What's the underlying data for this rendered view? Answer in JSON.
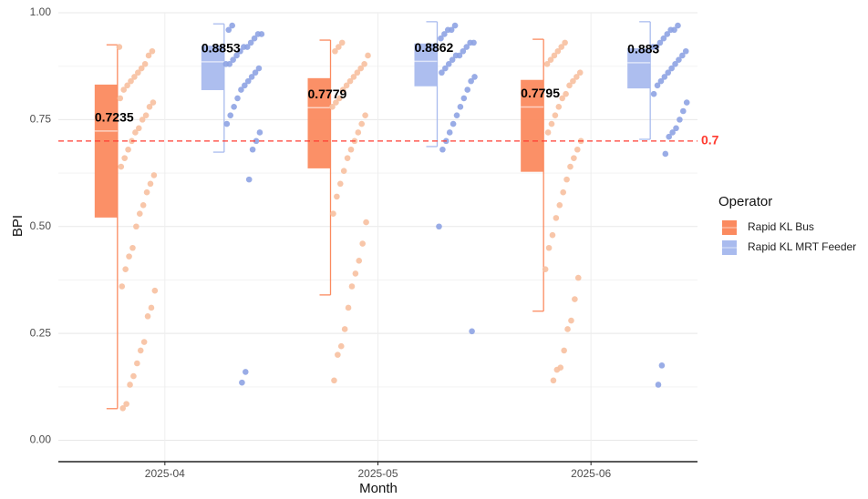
{
  "chart_data": {
    "type": "box",
    "x_label": "Month",
    "y_label": "BPI",
    "categories": [
      "2025-04",
      "2025-05",
      "2025-06"
    ],
    "ylim": [
      -0.05,
      1.0
    ],
    "yticks": [
      {
        "value": 0,
        "label": "0.00"
      },
      {
        "value": 0.25,
        "label": "0.25"
      },
      {
        "value": 0.5,
        "label": "0.50"
      },
      {
        "value": 0.75,
        "label": "0.75"
      },
      {
        "value": 1,
        "label": "1.00"
      }
    ],
    "grid": true,
    "legend_title": "Operator",
    "legend_position": "right",
    "hline": {
      "value": 0.7,
      "color": "#ff3b30"
    },
    "series": [
      {
        "name": "Rapid KL Bus",
        "color": "#fb8a5f",
        "point_color": "#f7c0a0",
        "boxes": [
          {
            "low": 0.074,
            "q1": 0.521,
            "median": 0.7235,
            "q3": 0.832,
            "high": 0.925
          },
          {
            "low": 0.34,
            "q1": 0.636,
            "median": 0.7779,
            "q3": 0.847,
            "high": 0.936
          },
          {
            "low": 0.302,
            "q1": 0.628,
            "median": 0.7795,
            "q3": 0.843,
            "high": 0.938
          }
        ],
        "points": [
          [
            0.92,
            0.91,
            0.9,
            0.88,
            0.87,
            0.86,
            0.85,
            0.84,
            0.83,
            0.82,
            0.8,
            0.79,
            0.78,
            0.76,
            0.75,
            0.73,
            0.72,
            0.7,
            0.68,
            0.66,
            0.64,
            0.62,
            0.6,
            0.58,
            0.55,
            0.53,
            0.5,
            0.45,
            0.43,
            0.4,
            0.36,
            0.35,
            0.31,
            0.29,
            0.23,
            0.21,
            0.18,
            0.15,
            0.13,
            0.085,
            0.075
          ],
          [
            0.93,
            0.92,
            0.91,
            0.9,
            0.88,
            0.87,
            0.86,
            0.85,
            0.84,
            0.83,
            0.82,
            0.8,
            0.79,
            0.78,
            0.76,
            0.74,
            0.72,
            0.7,
            0.68,
            0.66,
            0.63,
            0.6,
            0.57,
            0.53,
            0.51,
            0.46,
            0.42,
            0.39,
            0.36,
            0.31,
            0.26,
            0.22,
            0.2,
            0.14
          ],
          [
            0.93,
            0.92,
            0.91,
            0.9,
            0.89,
            0.88,
            0.86,
            0.85,
            0.84,
            0.83,
            0.81,
            0.8,
            0.78,
            0.76,
            0.74,
            0.72,
            0.7,
            0.68,
            0.66,
            0.64,
            0.61,
            0.58,
            0.55,
            0.52,
            0.48,
            0.45,
            0.4,
            0.38,
            0.33,
            0.28,
            0.26,
            0.21,
            0.17,
            0.165,
            0.14
          ]
        ]
      },
      {
        "name": "Rapid KL MRT Feeder",
        "color": "#a9bbee",
        "point_color": "#8ea3e3",
        "boxes": [
          {
            "low": 0.674,
            "q1": 0.819,
            "median": 0.8853,
            "q3": 0.923,
            "high": 0.974
          },
          {
            "low": 0.687,
            "q1": 0.828,
            "median": 0.8862,
            "q3": 0.928,
            "high": 0.979
          },
          {
            "low": 0.704,
            "q1": 0.823,
            "median": 0.883,
            "q3": 0.917,
            "high": 0.979
          }
        ],
        "points": [
          [
            0.97,
            0.96,
            0.95,
            0.95,
            0.94,
            0.93,
            0.92,
            0.92,
            0.91,
            0.9,
            0.89,
            0.88,
            0.88,
            0.87,
            0.86,
            0.85,
            0.84,
            0.83,
            0.82,
            0.8,
            0.78,
            0.76,
            0.74,
            0.72,
            0.7,
            0.68,
            0.61,
            0.16,
            0.135
          ],
          [
            0.97,
            0.96,
            0.96,
            0.95,
            0.94,
            0.93,
            0.93,
            0.92,
            0.91,
            0.9,
            0.9,
            0.89,
            0.88,
            0.87,
            0.86,
            0.85,
            0.84,
            0.82,
            0.8,
            0.78,
            0.76,
            0.74,
            0.72,
            0.7,
            0.68,
            0.5,
            0.255
          ],
          [
            0.97,
            0.96,
            0.96,
            0.95,
            0.94,
            0.93,
            0.92,
            0.92,
            0.91,
            0.9,
            0.89,
            0.88,
            0.87,
            0.86,
            0.85,
            0.84,
            0.83,
            0.81,
            0.79,
            0.77,
            0.75,
            0.73,
            0.72,
            0.71,
            0.67,
            0.175,
            0.13
          ]
        ]
      }
    ]
  }
}
